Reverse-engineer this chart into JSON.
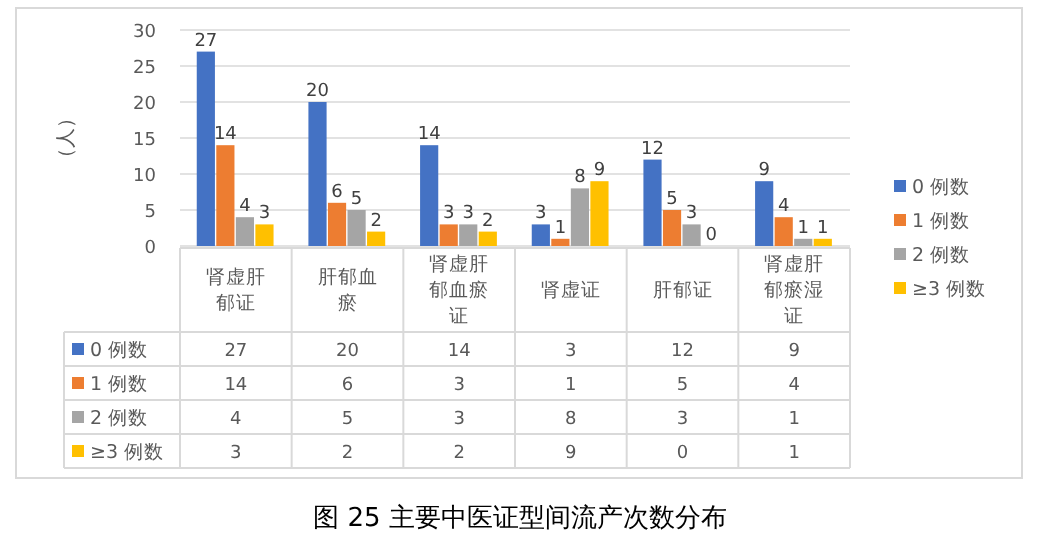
{
  "chart_data": {
    "type": "bar",
    "title": "图 25  主要中医证型间流产次数分布",
    "ylabel": "（人）",
    "categories": [
      "肾虚肝郁证",
      "肝郁血瘀",
      "肾虚肝郁血瘀证",
      "肾虚证",
      "肝郁证",
      "肾虚肝郁瘀湿证"
    ],
    "series": [
      {
        "name": "0 例数",
        "color": "#4472c4",
        "values": [
          27,
          20,
          14,
          3,
          12,
          9
        ],
        "value_labels": [
          "27",
          "20",
          "14",
          "3",
          "12",
          "9"
        ]
      },
      {
        "name": "1 例数",
        "color": "#ed7d31",
        "values": [
          14,
          6,
          3,
          1,
          5,
          4
        ],
        "value_labels": [
          "14",
          "6",
          "3",
          "1",
          "5",
          "4"
        ]
      },
      {
        "name": "2 例数",
        "color": "#a5a5a5",
        "values": [
          4,
          5,
          3,
          8,
          3,
          1
        ],
        "value_labels": [
          "4",
          "5",
          "3",
          "8",
          "3",
          "1"
        ]
      },
      {
        "name": "≥3 例数",
        "color": "#ffc000",
        "values": [
          3,
          2,
          2,
          9,
          0,
          1
        ],
        "value_labels": [
          "3",
          "2",
          "2",
          "9",
          "0",
          "1"
        ]
      }
    ],
    "ylim": [
      0,
      30
    ],
    "yticks": [
      0,
      5,
      10,
      15,
      20,
      25,
      30
    ],
    "grid": "y",
    "legend": "right",
    "data_labels": true
  }
}
